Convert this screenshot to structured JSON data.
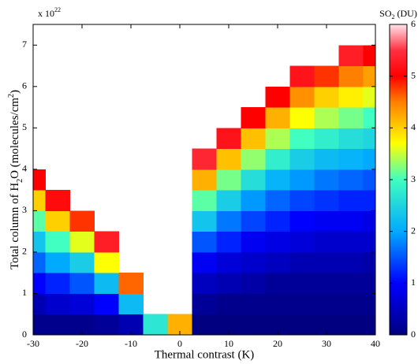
{
  "chart_data": {
    "type": "heatmap",
    "xlabel": "Thermal contrast (K)",
    "ylabel_parts": [
      "Total column of H",
      "2",
      "O (molecules/cm",
      "2",
      ")"
    ],
    "y_exponent_parts": [
      "x 10",
      "22"
    ],
    "colorbar_label_parts": [
      "SO",
      "2",
      " (DU)"
    ],
    "xlim": [
      -30,
      40
    ],
    "xticks": [
      -30,
      -20,
      -10,
      0,
      10,
      20,
      30,
      40
    ],
    "ylim": [
      0,
      7.5
    ],
    "yticks": [
      0,
      1,
      2,
      3,
      4,
      5,
      6,
      7
    ],
    "clim": [
      0,
      6
    ],
    "cticks": [
      0,
      1,
      2,
      3,
      4,
      5,
      6
    ],
    "x": [
      -30,
      -25,
      -20,
      -15,
      -10,
      -5,
      0,
      5,
      10,
      15,
      20,
      25,
      30,
      35,
      40
    ],
    "y": [
      0.25,
      0.75,
      1.25,
      1.75,
      2.25,
      2.75,
      3.25,
      3.75,
      4.25,
      4.75,
      5.25,
      5.75,
      6.25,
      6.75
    ],
    "z": [
      [
        0.1,
        0.1,
        0.1,
        0.2,
        0.4,
        2.7,
        4.2,
        0.0,
        0.0,
        0.0,
        0.0,
        0.0,
        0.0,
        0.0,
        0.0
      ],
      [
        0.4,
        0.6,
        0.7,
        1.0,
        2.2,
        null,
        null,
        0.2,
        0.1,
        0.1,
        0.1,
        0.1,
        0.1,
        0.1,
        0.1
      ],
      [
        1.0,
        1.2,
        1.5,
        2.2,
        4.6,
        null,
        null,
        0.5,
        0.4,
        0.3,
        0.2,
        0.2,
        0.2,
        0.2,
        0.2
      ],
      [
        1.6,
        2.0,
        2.4,
        3.7,
        null,
        null,
        null,
        0.9,
        0.7,
        0.6,
        0.5,
        0.4,
        0.4,
        0.4,
        0.3
      ],
      [
        2.3,
        3.0,
        3.6,
        5.3,
        null,
        null,
        null,
        1.5,
        1.2,
        0.9,
        0.8,
        0.7,
        0.6,
        0.6,
        0.6
      ],
      [
        3.1,
        4.0,
        4.8,
        null,
        null,
        null,
        null,
        2.3,
        1.7,
        1.4,
        1.2,
        1.0,
        0.9,
        0.9,
        0.8
      ],
      [
        4.0,
        5.1,
        null,
        null,
        null,
        null,
        null,
        3.1,
        2.4,
        1.9,
        1.6,
        1.4,
        1.3,
        1.2,
        1.2
      ],
      [
        5.0,
        null,
        null,
        null,
        null,
        null,
        null,
        4.2,
        3.2,
        2.6,
        2.1,
        1.9,
        1.7,
        1.6,
        1.5
      ],
      [
        null,
        null,
        null,
        null,
        null,
        null,
        null,
        5.4,
        4.1,
        3.3,
        2.8,
        2.4,
        2.2,
        2.1,
        2.0
      ],
      [
        null,
        null,
        null,
        null,
        null,
        null,
        null,
        null,
        5.2,
        4.1,
        3.4,
        3.0,
        2.8,
        2.6,
        2.5
      ],
      [
        null,
        null,
        null,
        null,
        null,
        null,
        null,
        null,
        null,
        5.0,
        4.2,
        3.7,
        3.4,
        3.2,
        3.0
      ],
      [
        null,
        null,
        null,
        null,
        null,
        null,
        null,
        null,
        null,
        null,
        5.0,
        4.4,
        4.0,
        3.8,
        3.6
      ],
      [
        null,
        null,
        null,
        null,
        null,
        null,
        null,
        null,
        null,
        null,
        null,
        5.2,
        4.8,
        4.5,
        4.3
      ],
      [
        null,
        null,
        null,
        null,
        null,
        null,
        null,
        null,
        null,
        null,
        null,
        null,
        null,
        5.3,
        5.0
      ]
    ]
  }
}
